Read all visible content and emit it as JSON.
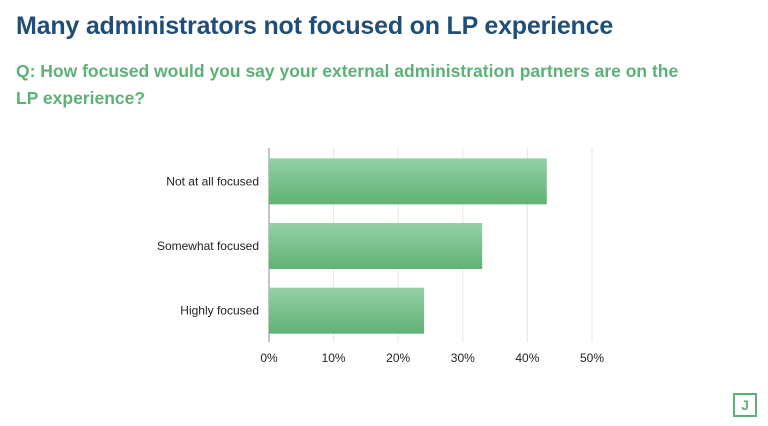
{
  "title": "Many administrators not focused on LP experience",
  "question": "Q: How focused would you say your external administration partners are on the LP experience?",
  "logo_letter": "J",
  "colors": {
    "title": "#1f4e79",
    "accent": "#5cb176",
    "bar_top": "#95d0a6",
    "bar_bottom": "#5fb274"
  },
  "chart_data": {
    "type": "bar",
    "orientation": "horizontal",
    "categories": [
      "Not at all focused",
      "Somewhat focused",
      "Highly focused"
    ],
    "values": [
      43,
      33,
      24
    ],
    "xlim": [
      0,
      50
    ],
    "xticks": [
      0,
      10,
      20,
      30,
      40,
      50
    ],
    "xtick_labels": [
      "0%",
      "10%",
      "20%",
      "30%",
      "40%",
      "50%"
    ],
    "grid": true,
    "xlabel": "",
    "ylabel": ""
  }
}
